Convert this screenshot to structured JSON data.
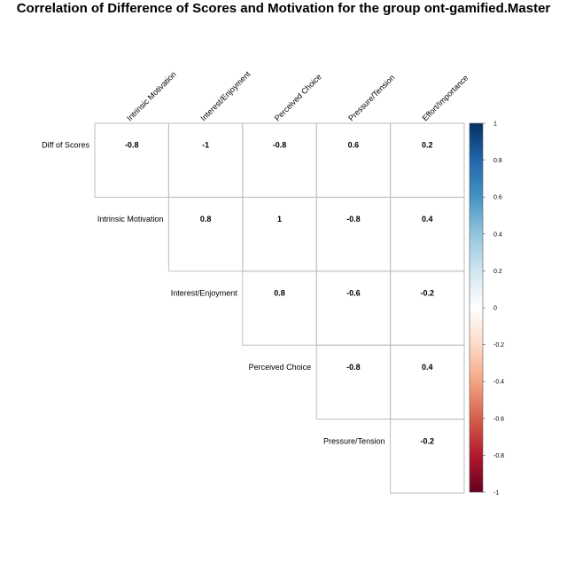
{
  "chart_data": {
    "type": "heatmap",
    "title": "Correlation of Difference of Scores and Motivation for the group ont-gamified.Master",
    "column_labels": [
      "Intrinsic Motivation",
      "Interest/Enjoyment",
      "Perceived Choice",
      "Pressure/Tension",
      "Effort/Importance"
    ],
    "row_labels": [
      "Diff of Scores",
      "Intrinsic Motivation",
      "Interest/Enjoyment",
      "Perceived Choice",
      "Pressure/Tension"
    ],
    "cells": [
      [
        "-0.8",
        "-1",
        "-0.8",
        "0.6",
        "0.2"
      ],
      [
        null,
        "0.8",
        "1",
        "-0.8",
        "0.4"
      ],
      [
        null,
        null,
        "0.8",
        "-0.6",
        "-0.2"
      ],
      [
        null,
        null,
        null,
        "-0.8",
        "0.4"
      ],
      [
        null,
        null,
        null,
        null,
        "-0.2"
      ]
    ],
    "layout": "upper-triangular",
    "cell_fill": "none",
    "colorbar": {
      "range": [
        -1,
        1
      ],
      "ticks": [
        "1",
        "0.8",
        "0.6",
        "0.4",
        "0.2",
        "0",
        "-0.2",
        "-0.4",
        "-0.6",
        "-0.8",
        "-1"
      ],
      "colors": [
        "#67001f",
        "#b2182b",
        "#d6604d",
        "#f4a582",
        "#fddbc7",
        "#ffffff",
        "#d1e5f0",
        "#92c5de",
        "#4393c3",
        "#2166ac",
        "#053061"
      ]
    },
    "grid_color": "#bebebe"
  }
}
